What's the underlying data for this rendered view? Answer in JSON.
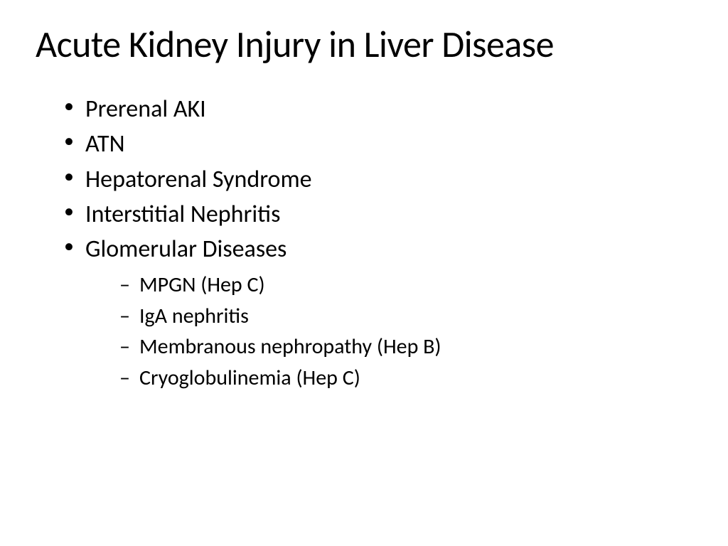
{
  "slide": {
    "title": "Acute Kidney Injury in Liver Disease",
    "background_color": "#ffffff",
    "text_color": "#000000",
    "title_fontsize": 52,
    "bullet_fontsize": 34,
    "sub_bullet_fontsize": 30,
    "font_family": "Calibri",
    "bullets": [
      {
        "text": "Prerenal AKI"
      },
      {
        "text": "ATN"
      },
      {
        "text": "Hepatorenal Syndrome"
      },
      {
        "text": "Interstitial Nephritis"
      },
      {
        "text": "Glomerular Diseases",
        "subitems": [
          "MPGN (Hep C)",
          "IgA nephritis",
          "Membranous nephropathy (Hep B)",
          "Cryoglobulinemia (Hep C)"
        ]
      }
    ]
  }
}
